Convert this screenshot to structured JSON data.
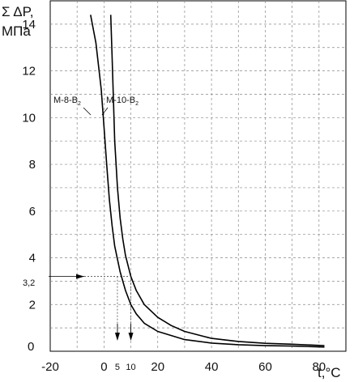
{
  "chart_data": {
    "type": "line",
    "ylabel_line1": "Σ ΔP,",
    "ylabel_line2": "МПа",
    "xlabel": "t,°C",
    "xlim": [
      -20,
      90
    ],
    "ylim": [
      0,
      15
    ],
    "x_ticks": [
      -20,
      0,
      20,
      40,
      60,
      80
    ],
    "y_ticks": [
      2,
      4,
      6,
      8,
      10,
      12,
      14
    ],
    "y_zero_label": "0",
    "grid": true,
    "series": [
      {
        "name": "М-8-В₂",
        "label_main": "М-8-В",
        "label_sub": "2",
        "x": [
          -5,
          -3,
          -1,
          0,
          1,
          2,
          3,
          4,
          6,
          8,
          10,
          12,
          15,
          20,
          30,
          40,
          50,
          60,
          70,
          82
        ],
        "y": [
          14.4,
          13.2,
          11.2,
          9.6,
          8.0,
          6.5,
          5.4,
          4.5,
          3.4,
          2.6,
          2.0,
          1.6,
          1.2,
          0.85,
          0.5,
          0.35,
          0.28,
          0.24,
          0.22,
          0.18
        ]
      },
      {
        "name": "М-10-В₂",
        "label_main": "М-10-В",
        "label_sub": "2",
        "x": [
          2.5,
          3,
          3.5,
          4,
          5,
          6,
          7,
          8,
          10,
          12,
          15,
          20,
          25,
          30,
          40,
          50,
          60,
          70,
          82
        ],
        "y": [
          14.4,
          12.7,
          10.8,
          9.0,
          7.0,
          5.7,
          4.8,
          4.1,
          3.2,
          2.6,
          2.0,
          1.45,
          1.1,
          0.85,
          0.55,
          0.42,
          0.34,
          0.3,
          0.24
        ]
      }
    ],
    "annotations": {
      "level_label": "3,2",
      "level_value": 3.2,
      "arrow_x_values": [
        5,
        10
      ],
      "arrow_labels": [
        "5",
        "10"
      ]
    }
  }
}
